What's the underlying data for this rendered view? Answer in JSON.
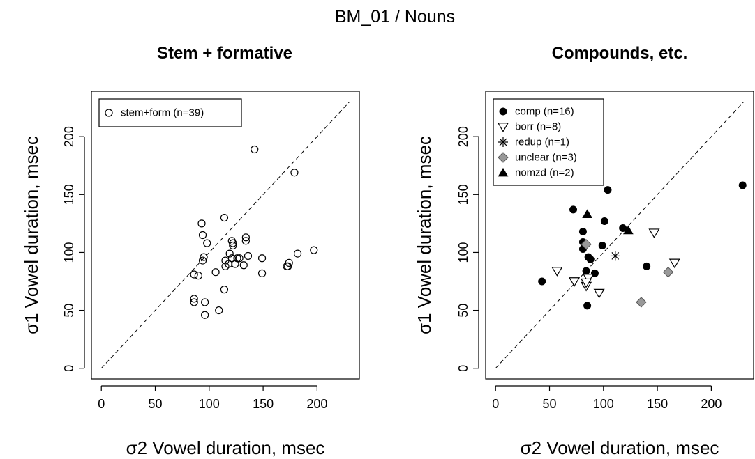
{
  "figure": {
    "title": "BM_01  /  Nouns"
  },
  "chart_data": [
    {
      "type": "scatter",
      "title": "Stem + formative",
      "xlabel": "σ2  Vowel duration,  msec",
      "ylabel": "σ1  Vowel duration,  msec",
      "xlim": [
        0,
        230
      ],
      "ylim": [
        0,
        230
      ],
      "xticks": [
        0,
        50,
        100,
        150,
        200
      ],
      "yticks": [
        0,
        50,
        100,
        150,
        200
      ],
      "reference_line": "y = x (dashed)",
      "grid": false,
      "legend_position": "top-left",
      "series": [
        {
          "name": "stem+form  (n=39)",
          "marker": "open-circle",
          "color": "#000000",
          "points": [
            [
              86,
              81
            ],
            [
              86,
              57
            ],
            [
              86,
              60
            ],
            [
              90,
              80
            ],
            [
              93,
              125
            ],
            [
              94,
              115
            ],
            [
              94,
              93
            ],
            [
              95,
              96
            ],
            [
              96,
              57
            ],
            [
              96,
              46
            ],
            [
              98,
              108
            ],
            [
              106,
              83
            ],
            [
              109,
              50
            ],
            [
              114,
              130
            ],
            [
              114,
              68
            ],
            [
              115,
              93
            ],
            [
              115,
              88
            ],
            [
              118,
              90
            ],
            [
              119,
              99
            ],
            [
              121,
              110
            ],
            [
              121,
              95
            ],
            [
              122,
              106
            ],
            [
              122,
              108
            ],
            [
              124,
              90
            ],
            [
              126,
              95
            ],
            [
              128,
              95
            ],
            [
              132,
              89
            ],
            [
              134,
              113
            ],
            [
              134,
              110
            ],
            [
              136,
              97
            ],
            [
              142,
              189
            ],
            [
              149,
              95
            ],
            [
              149,
              82
            ],
            [
              172,
              88
            ],
            [
              173,
              88
            ],
            [
              174,
              91
            ],
            [
              179,
              169
            ],
            [
              182,
              99
            ],
            [
              197,
              102
            ]
          ]
        }
      ]
    },
    {
      "type": "scatter",
      "title": "Compounds, etc.",
      "xlabel": "σ2  Vowel duration,  msec",
      "ylabel": "σ1  Vowel duration,  msec",
      "xlim": [
        0,
        230
      ],
      "ylim": [
        0,
        230
      ],
      "xticks": [
        0,
        50,
        100,
        150,
        200
      ],
      "yticks": [
        0,
        50,
        100,
        150,
        200
      ],
      "reference_line": "y = x (dashed)",
      "grid": false,
      "legend_position": "top-left",
      "series": [
        {
          "name": "comp  (n=16)",
          "marker": "filled-circle",
          "color": "#000000",
          "points": [
            [
              43,
              75
            ],
            [
              72,
              137
            ],
            [
              81,
              118
            ],
            [
              81,
              109
            ],
            [
              84,
              84
            ],
            [
              85,
              54
            ],
            [
              86,
              96
            ],
            [
              88,
              94
            ],
            [
              92,
              82
            ],
            [
              99,
              106
            ],
            [
              101,
              127
            ],
            [
              104,
              154
            ],
            [
              118,
              121
            ],
            [
              140,
              88
            ],
            [
              229,
              158
            ],
            [
              81,
              103
            ]
          ]
        },
        {
          "name": "borr  (n=8)",
          "marker": "open-triangle-down",
          "color": "#000000",
          "points": [
            [
              57,
              84
            ],
            [
              73,
              75
            ],
            [
              84,
              71
            ],
            [
              86,
              78
            ],
            [
              96,
              65
            ],
            [
              147,
              117
            ],
            [
              166,
              91
            ],
            [
              84,
              74
            ]
          ]
        },
        {
          "name": "redup  (n=1)",
          "marker": "asterisk",
          "color": "#000000",
          "points": [
            [
              111,
              97
            ]
          ]
        },
        {
          "name": "unclear  (n=3)",
          "marker": "gray-diamond",
          "color": "#999999",
          "points": [
            [
              84,
              107
            ],
            [
              135,
              57
            ],
            [
              160,
              83
            ]
          ]
        },
        {
          "name": "nomzd  (n=2)",
          "marker": "filled-triangle-up",
          "color": "#000000",
          "points": [
            [
              85,
              133
            ],
            [
              123,
              119
            ]
          ]
        }
      ]
    }
  ]
}
